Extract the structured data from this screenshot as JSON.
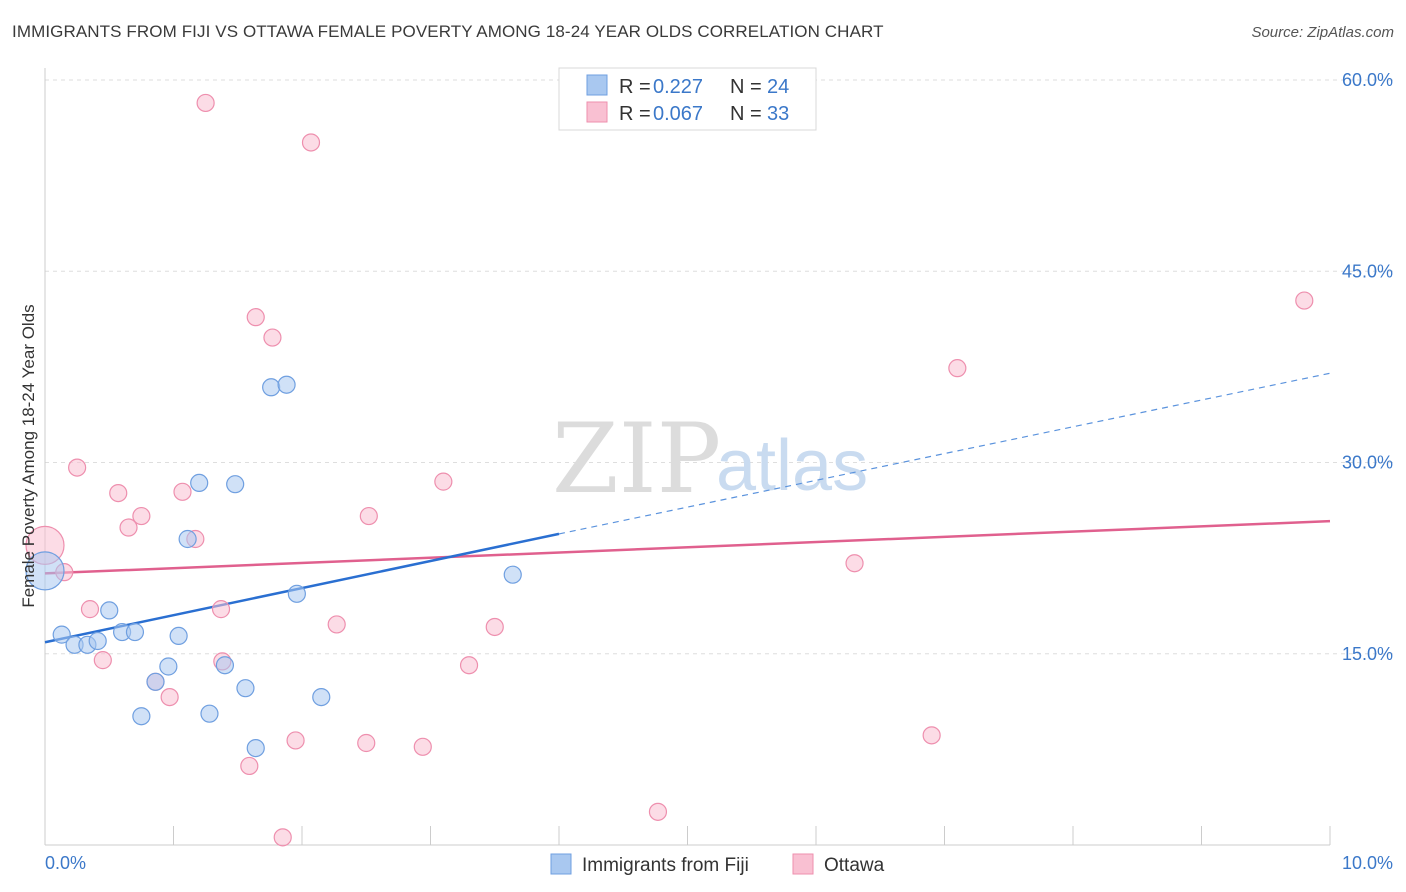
{
  "title": "IMMIGRANTS FROM FIJI VS OTTAWA FEMALE POVERTY AMONG 18-24 YEAR OLDS CORRELATION CHART",
  "source": "Source: ZipAtlas.com",
  "watermark": {
    "zip": "ZIP",
    "atlas": "atlas"
  },
  "legend": {
    "rows": [
      {
        "r_label": "R =",
        "r_value": "0.227",
        "n_label": "N =",
        "n_value": "24",
        "color": "#a9c8f0",
        "stroke": "#6f9fe0"
      },
      {
        "r_label": "R =",
        "r_value": "0.067",
        "n_label": "N =",
        "n_value": "33",
        "color": "#f9c0d2",
        "stroke": "#ee8fae"
      }
    ]
  },
  "bottom_legend": [
    {
      "label": "Immigrants from Fiji",
      "color": "#a9c8f0",
      "stroke": "#6f9fe0"
    },
    {
      "label": "Ottawa",
      "color": "#f9c0d2",
      "stroke": "#ee8fae"
    }
  ],
  "chart_data": {
    "type": "scatter",
    "title": "IMMIGRANTS FROM FIJI VS OTTAWA FEMALE POVERTY AMONG 18-24 YEAR OLDS CORRELATION CHART",
    "xlabel": "",
    "ylabel": "Female Poverty Among 18-24 Year Olds",
    "xlim": [
      0,
      10
    ],
    "ylim": [
      0,
      60
    ],
    "x_tick_labels": [
      "0.0%",
      "10.0%"
    ],
    "y_ticks": [
      15,
      30,
      45,
      60
    ],
    "y_tick_labels": [
      "15.0%",
      "30.0%",
      "45.0%",
      "60.0%"
    ],
    "grid": true,
    "legend_position": "top-center",
    "series": [
      {
        "name": "Immigrants from Fiji",
        "color": "#6f9fe0",
        "points": [
          [
            0.0,
            21.5,
            "large"
          ],
          [
            0.13,
            16.5
          ],
          [
            0.23,
            15.7
          ],
          [
            0.33,
            15.7
          ],
          [
            0.41,
            16.0
          ],
          [
            0.5,
            18.4
          ],
          [
            0.6,
            16.7
          ],
          [
            0.7,
            16.7
          ],
          [
            0.75,
            10.1
          ],
          [
            0.86,
            12.8
          ],
          [
            0.96,
            14.0
          ],
          [
            1.04,
            16.4
          ],
          [
            1.11,
            24.0
          ],
          [
            1.2,
            28.4
          ],
          [
            1.28,
            10.3
          ],
          [
            1.4,
            14.1
          ],
          [
            1.48,
            28.3
          ],
          [
            1.56,
            12.3
          ],
          [
            1.64,
            7.6
          ],
          [
            1.76,
            35.9
          ],
          [
            1.88,
            36.1
          ],
          [
            1.96,
            19.7
          ],
          [
            2.15,
            11.6
          ],
          [
            3.64,
            21.2
          ]
        ],
        "trend": {
          "x0": 0.0,
          "y0": 15.9,
          "x1": 4.0,
          "y1": 24.4,
          "dashed_to_x": 10.0,
          "dashed_to_y": 37.0
        }
      },
      {
        "name": "Ottawa",
        "color": "#ee8fae",
        "points": [
          [
            0.0,
            23.5,
            "large"
          ],
          [
            0.15,
            21.4
          ],
          [
            0.25,
            29.6
          ],
          [
            0.35,
            18.5
          ],
          [
            0.45,
            14.5
          ],
          [
            0.57,
            27.6
          ],
          [
            0.65,
            24.9
          ],
          [
            0.75,
            25.8
          ],
          [
            0.86,
            12.8
          ],
          [
            0.97,
            11.6
          ],
          [
            1.07,
            27.7
          ],
          [
            1.17,
            24.0
          ],
          [
            1.37,
            18.5
          ],
          [
            1.38,
            14.4
          ],
          [
            1.59,
            6.2
          ],
          [
            1.64,
            41.4
          ],
          [
            1.77,
            39.8
          ],
          [
            1.85,
            0.6
          ],
          [
            1.95,
            8.2
          ],
          [
            2.07,
            55.1
          ],
          [
            2.27,
            17.3
          ],
          [
            2.5,
            8.0
          ],
          [
            2.52,
            25.8
          ],
          [
            2.94,
            7.7
          ],
          [
            3.1,
            28.5
          ],
          [
            3.3,
            14.1
          ],
          [
            3.5,
            17.1
          ],
          [
            4.77,
            2.6
          ],
          [
            1.25,
            58.2
          ],
          [
            6.3,
            22.1
          ],
          [
            6.9,
            8.6
          ],
          [
            7.1,
            37.4
          ],
          [
            9.8,
            42.7
          ]
        ],
        "trend": {
          "x0": 0.0,
          "y0": 21.3,
          "x1": 10.0,
          "y1": 25.4
        }
      }
    ]
  }
}
